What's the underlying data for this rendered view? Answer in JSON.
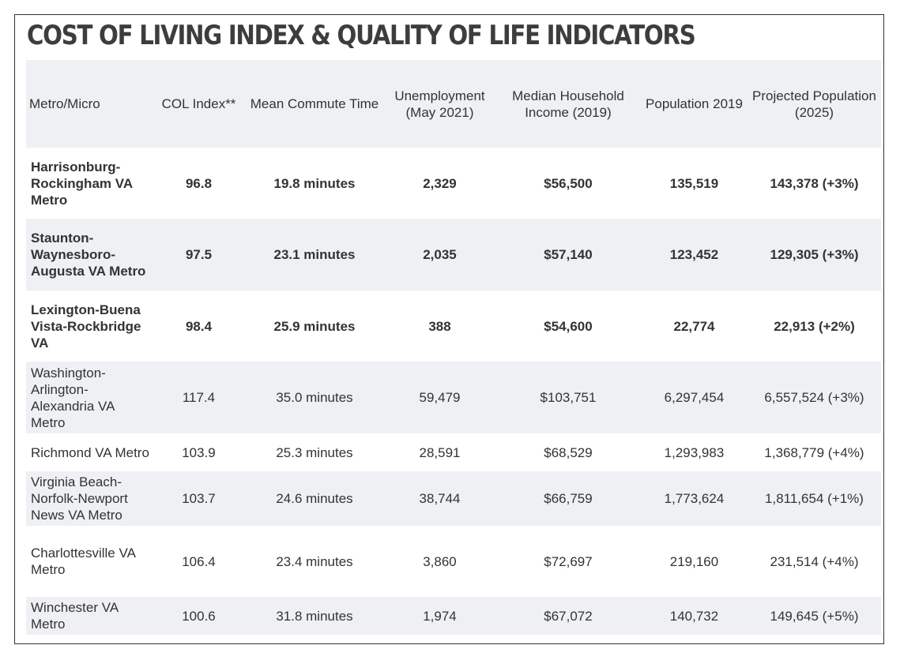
{
  "title": "COST OF LIVING INDEX & QUALITY OF LIFE INDICATORS",
  "columns": [
    "Metro/Micro",
    "COL Index**",
    "Mean Commute Time",
    "Unemployment (May 2021)",
    "Median Household Income (2019)",
    "Population 2019",
    "Projected Population (2025)"
  ],
  "rows": [
    [
      "Harrisonburg-Rockingham VA Metro",
      "96.8",
      "19.8 minutes",
      "2,329",
      "$56,500",
      "135,519",
      "143,378 (+3%)"
    ],
    [
      "Staunton-Waynesboro-Augusta VA Metro",
      "97.5",
      "23.1 minutes",
      "2,035",
      "$57,140",
      "123,452",
      "129,305 (+3%)"
    ],
    [
      "Lexington-Buena Vista-Rockbridge VA",
      "98.4",
      "25.9 minutes",
      "388",
      "$54,600",
      "22,774",
      "22,913 (+2%)"
    ],
    [
      "Washington-Arlington-Alexandria VA Metro",
      "117.4",
      "35.0 minutes",
      "59,479",
      "$103,751",
      "6,297,454",
      "6,557,524 (+3%)"
    ],
    [
      "Richmond VA Metro",
      "103.9",
      "25.3 minutes",
      "28,591",
      "$68,529",
      "1,293,983",
      "1,368,779 (+4%)"
    ],
    [
      "Virginia Beach-Norfolk-Newport News VA Metro",
      "103.7",
      "24.6 minutes",
      "38,744",
      "$66,759",
      "1,773,624",
      "1,811,654 (+1%)"
    ],
    [
      "Charlottesville VA Metro",
      "106.4",
      "23.4 minutes",
      "3,860",
      "$72,697",
      "219,160",
      "231,514 (+4%)"
    ],
    [
      "Winchester VA Metro",
      "100.6",
      "31.8 minutes",
      "1,974",
      "$67,072",
      "140,732",
      "149,645 (+5%)"
    ]
  ]
}
